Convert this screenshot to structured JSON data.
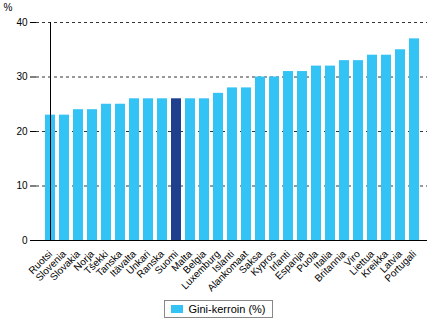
{
  "chart_data": {
    "type": "bar",
    "categories": [
      "Ruotsi",
      "Slovenia",
      "Slovakia",
      "Norja",
      "Tšekki",
      "Tanska",
      "Itävalta",
      "Unkari",
      "Ranska",
      "Suomi",
      "Malta",
      "Belgia",
      "Luxemburg",
      "Islanti",
      "Alankomaat",
      "Saksa",
      "Kypros",
      "Irlanti",
      "Espanja",
      "Puola",
      "Italia",
      "Britannia",
      "Viro",
      "Liettua",
      "Kreikka",
      "Latvia",
      "Portugali"
    ],
    "series": [
      {
        "name": "Gini-kerroin (%)",
        "color": "#33c3f5",
        "values": [
          23,
          23,
          24,
          24,
          25,
          25,
          26,
          26,
          26,
          26,
          26,
          26,
          27,
          28,
          28,
          30,
          30,
          31,
          31,
          32,
          32,
          33,
          33,
          34,
          34,
          35,
          37
        ],
        "colors": [
          "#33c3f5",
          "#33c3f5",
          "#33c3f5",
          "#33c3f5",
          "#33c3f5",
          "#33c3f5",
          "#33c3f5",
          "#33c3f5",
          "#33c3f5",
          "#1f3f8f",
          "#33c3f5",
          "#33c3f5",
          "#33c3f5",
          "#33c3f5",
          "#33c3f5",
          "#33c3f5",
          "#33c3f5",
          "#33c3f5",
          "#33c3f5",
          "#33c3f5",
          "#33c3f5",
          "#33c3f5",
          "#33c3f5",
          "#33c3f5",
          "#33c3f5",
          "#33c3f5",
          "#33c3f5"
        ]
      }
    ],
    "y_label": "%",
    "ylim": [
      0,
      40
    ],
    "yticks": [
      0,
      10,
      20,
      30,
      40
    ],
    "grid": true,
    "legend": "bottom"
  }
}
